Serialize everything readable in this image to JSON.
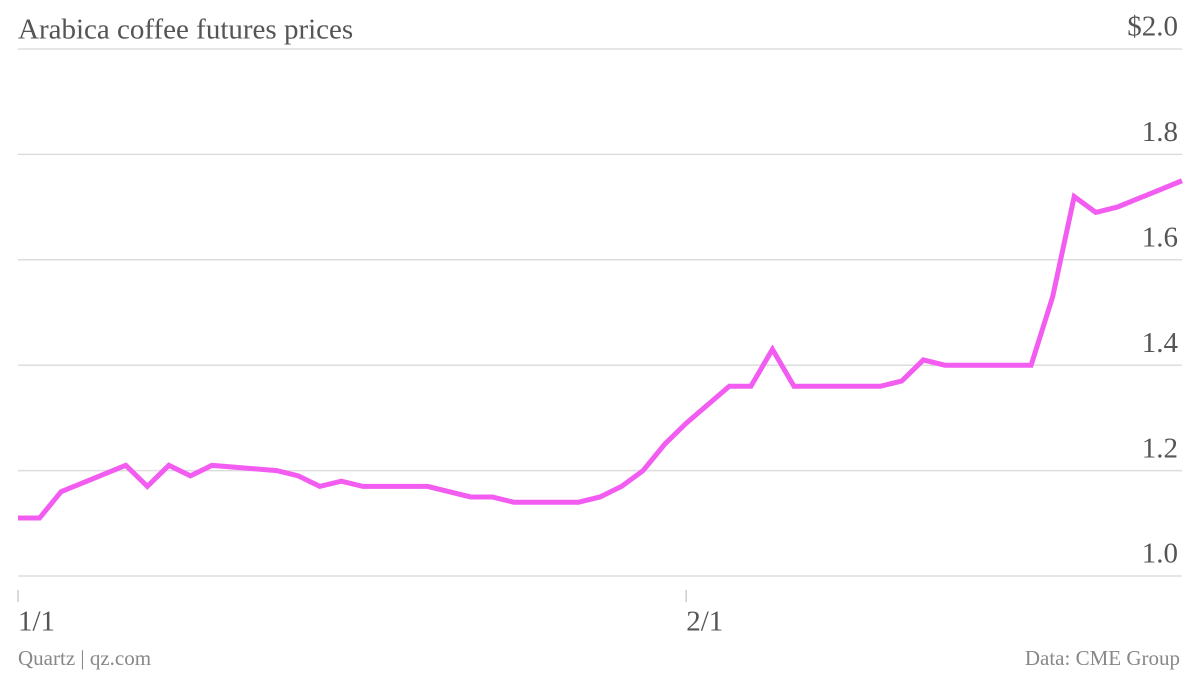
{
  "chart_data": {
    "type": "line",
    "title": "Arabica coffee futures prices",
    "x": [
      "1/1",
      "1/2",
      "1/3",
      "1/6",
      "1/7",
      "1/8",
      "1/9",
      "1/10",
      "1/13",
      "1/14",
      "1/15",
      "1/16",
      "1/17",
      "1/20",
      "1/22",
      "1/23",
      "1/24",
      "1/27",
      "1/28",
      "1/29",
      "1/30",
      "1/31",
      "2/1",
      "2/3",
      "2/4",
      "2/5",
      "2/6",
      "2/10",
      "2/11",
      "2/12",
      "2/13",
      "2/17",
      "2/18",
      "2/19",
      "2/20",
      "2/21",
      "2/24"
    ],
    "series": [
      {
        "name": "Arabica coffee futures",
        "color": "#f25cf0",
        "values": [
          1.11,
          1.11,
          1.16,
          1.21,
          1.17,
          1.21,
          1.19,
          1.21,
          1.2,
          1.19,
          1.17,
          1.18,
          1.17,
          1.17,
          1.15,
          1.15,
          1.14,
          1.14,
          1.15,
          1.17,
          1.2,
          1.25,
          1.29,
          1.36,
          1.36,
          1.43,
          1.36,
          1.36,
          1.37,
          1.41,
          1.4,
          1.4,
          1.53,
          1.72,
          1.69,
          1.7,
          1.75
        ]
      }
    ],
    "xlim": [
      "1/1",
      "2/24"
    ],
    "xticks": [
      "1/1",
      "2/1"
    ],
    "ylim": [
      1,
      2
    ],
    "yticks": [
      {
        "value": 1,
        "label": "1.0"
      },
      1.2,
      1.4,
      1.6,
      1.8,
      {
        "value": 2,
        "label": "$2.0"
      }
    ],
    "grid": true,
    "credit": "Quartz | qz.com",
    "source": "Data: CME Group"
  }
}
